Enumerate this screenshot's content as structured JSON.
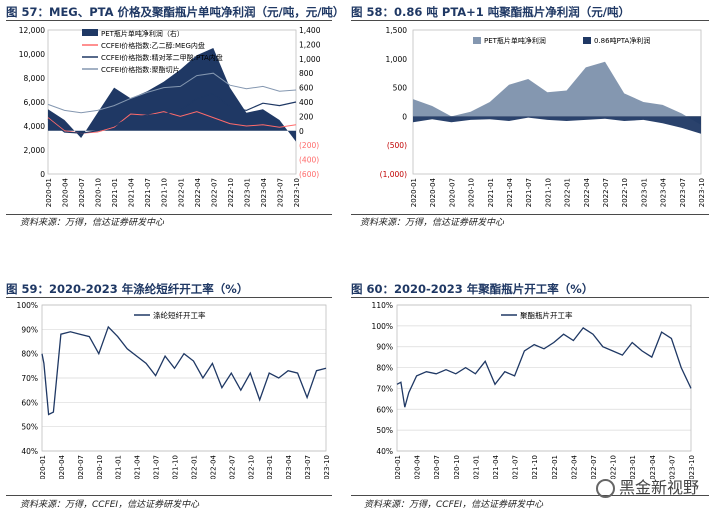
{
  "panels": [
    {
      "title": "图 57：MEG、PTA 价格及聚酯瓶片单吨净利润（元/吨，元/吨）",
      "source": "资料来源：万得，信达证券研发中心"
    },
    {
      "title": "图 58：0.86 吨 PTA+1 吨聚酯瓶片净利润（元/吨）",
      "source": "资料来源：万得，信达证券研发中心"
    },
    {
      "title": "图 59：2020-2023 年涤纶短纤开工率（%）",
      "source": "资料来源：万得，CCFEI，信达证券研发中心"
    },
    {
      "title": "图 60：2020-2023 年聚酯瓶片开工率（%）",
      "source": "资料来源：万得，CCFEI，信达证券研发中心"
    }
  ],
  "watermark": "黑金新视野",
  "colors": {
    "navy": "#1f3864",
    "steel": "#8497b0",
    "red": "#ff6b6b",
    "grid": "#d9d9d9",
    "title": "#1f3864"
  },
  "chart_data": [
    {
      "type": "area",
      "x_ticks": [
        "2020-01",
        "2020-04",
        "2020-07",
        "2020-10",
        "2021-01",
        "2021-04",
        "2021-07",
        "2021-10",
        "2022-01",
        "2022-04",
        "2022-07",
        "2022-10",
        "2023-01",
        "2023-04",
        "2023-07",
        "2023-10"
      ],
      "x": [
        0,
        1,
        2,
        3,
        4,
        5,
        6,
        7,
        8,
        9,
        10,
        11,
        12,
        13,
        14,
        15
      ],
      "left_yticks": [
        "0",
        "2,000",
        "4,000",
        "6,000",
        "8,000",
        "10,000",
        "12,000"
      ],
      "left_ylim": [
        0,
        12000
      ],
      "right_yticks": [
        "(600)",
        "(400)",
        "(200)",
        "0",
        "200",
        "400",
        "600",
        "800",
        "1,000",
        "1,200",
        "1,400"
      ],
      "right_ylim": [
        -600,
        1400
      ],
      "series": [
        {
          "name": "PET瓶片单吨净利润（右）",
          "axis": "right",
          "kind": "area",
          "values": [
            300,
            150,
            -100,
            250,
            600,
            450,
            550,
            680,
            850,
            1050,
            1150,
            600,
            250,
            300,
            150,
            -150
          ]
        },
        {
          "name": "CCFEI价格指数:乙二醇:MEG内盘",
          "axis": "left",
          "kind": "line",
          "values": [
            4700,
            3600,
            3400,
            3500,
            3900,
            5000,
            4900,
            5200,
            4800,
            5200,
            4700,
            4200,
            4000,
            4100,
            3900,
            4100
          ]
        },
        {
          "name": "CCFEI价格指数:精对苯二甲酸:PTA内盘",
          "axis": "left",
          "kind": "line",
          "values": [
            4600,
            3500,
            3400,
            3600,
            4000,
            4700,
            4900,
            5000,
            5300,
            6300,
            6700,
            5600,
            5300,
            5900,
            5700,
            6000
          ]
        },
        {
          "name": "CCFEI价格指数:聚酯切片",
          "axis": "left",
          "kind": "line",
          "values": [
            5800,
            5300,
            5100,
            5300,
            5700,
            6300,
            6800,
            7200,
            7300,
            8200,
            8400,
            7400,
            7100,
            7300,
            6900,
            7000
          ]
        }
      ]
    },
    {
      "type": "area",
      "x_ticks": [
        "2020-01",
        "2020-04",
        "2020-07",
        "2020-10",
        "2021-01",
        "2021-04",
        "2021-07",
        "2021-10",
        "2022-01",
        "2022-04",
        "2022-07",
        "2022-10",
        "2023-01",
        "2023-04",
        "2023-07",
        "2023-10"
      ],
      "x": [
        0,
        1,
        2,
        3,
        4,
        5,
        6,
        7,
        8,
        9,
        10,
        11,
        12,
        13,
        14,
        15
      ],
      "yticks": [
        "(1,000)",
        "(500)",
        "0",
        "500",
        "1,000",
        "1,500"
      ],
      "ylim": [
        -1000,
        1500
      ],
      "series": [
        {
          "name": "PET瓶片单吨净利润",
          "color": "#8497b0",
          "values": [
            300,
            180,
            0,
            80,
            250,
            550,
            650,
            420,
            450,
            850,
            950,
            400,
            250,
            200,
            50,
            -150
          ]
        },
        {
          "name": "0.86吨PTA净利润",
          "color": "#1f3864",
          "values": [
            -100,
            -50,
            -100,
            -60,
            -50,
            -80,
            -20,
            -60,
            -80,
            -60,
            -40,
            -80,
            -60,
            -120,
            -200,
            -300
          ]
        }
      ]
    },
    {
      "type": "line",
      "x_ticks": [
        "2020-01",
        "2020-04",
        "2020-07",
        "2020-10",
        "2021-01",
        "2021-04",
        "2021-07",
        "2021-10",
        "2022-01",
        "2022-04",
        "2022-07",
        "2022-10",
        "2023-01",
        "2023-04",
        "2023-07",
        "2023-10"
      ],
      "x": [
        0,
        0.1,
        0.35,
        0.6,
        1,
        1.5,
        2,
        2.5,
        3,
        3.5,
        4,
        4.5,
        5,
        5.5,
        6,
        6.5,
        7,
        7.5,
        8,
        8.5,
        9,
        9.5,
        10,
        10.5,
        11,
        11.5,
        12,
        12.5,
        13,
        13.5,
        14,
        14.5,
        15
      ],
      "yticks": [
        "40%",
        "50%",
        "60%",
        "70%",
        "80%",
        "90%",
        "100%"
      ],
      "ylim": [
        40,
        100
      ],
      "series": [
        {
          "name": "涤纶短纤开工率",
          "color": "#1f3864",
          "values": [
            80,
            76,
            55,
            56,
            88,
            89,
            88,
            87,
            80,
            91,
            87,
            82,
            79,
            76,
            71,
            79,
            74,
            80,
            77,
            70,
            76,
            66,
            72,
            65,
            72,
            61,
            72,
            70,
            73,
            72,
            62,
            73,
            74
          ]
        }
      ]
    },
    {
      "type": "line",
      "x_ticks": [
        "2020-01",
        "2020-04",
        "2020-07",
        "2020-10",
        "2021-01",
        "2021-04",
        "2021-07",
        "2021-10",
        "2022-01",
        "2022-04",
        "2022-07",
        "2022-10",
        "2023-01",
        "2023-04",
        "2023-07",
        "2023-10"
      ],
      "x": [
        0,
        0.2,
        0.4,
        0.6,
        1,
        1.5,
        2,
        2.5,
        3,
        3.5,
        4,
        4.5,
        5,
        5.5,
        6,
        6.5,
        7,
        7.5,
        8,
        8.5,
        9,
        9.5,
        10,
        10.5,
        11,
        11.5,
        12,
        12.5,
        13,
        13.5,
        14,
        14.5,
        15
      ],
      "yticks": [
        "40%",
        "50%",
        "60%",
        "70%",
        "80%",
        "90%",
        "100%",
        "110%"
      ],
      "ylim": [
        40,
        110
      ],
      "series": [
        {
          "name": "聚酯瓶片开工率",
          "color": "#1f3864",
          "values": [
            72,
            73,
            61,
            68,
            76,
            78,
            77,
            79,
            77,
            80,
            77,
            83,
            72,
            78,
            76,
            88,
            91,
            89,
            92,
            96,
            93,
            99,
            96,
            90,
            88,
            86,
            92,
            88,
            85,
            97,
            94,
            80,
            70
          ]
        }
      ]
    }
  ]
}
